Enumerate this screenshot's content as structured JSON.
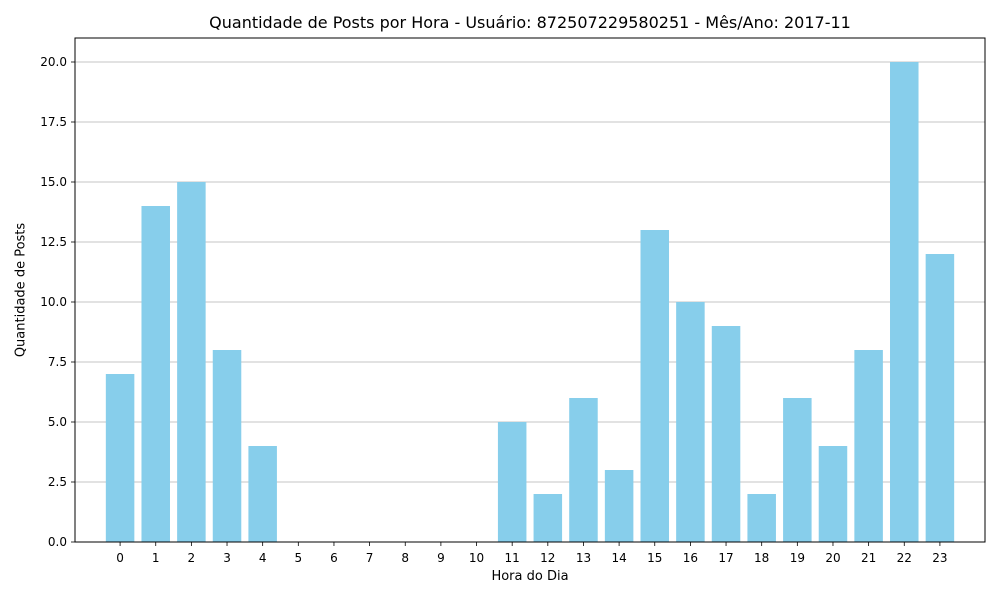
{
  "chart_data": {
    "type": "bar",
    "title": "Quantidade de Posts por Hora - Usuário: 872507229580251 - Mês/Ano: 2017-11",
    "xlabel": "Hora do Dia",
    "ylabel": "Quantidade de Posts",
    "categories": [
      "0",
      "1",
      "2",
      "3",
      "4",
      "5",
      "6",
      "7",
      "8",
      "9",
      "10",
      "11",
      "12",
      "13",
      "14",
      "15",
      "16",
      "17",
      "18",
      "19",
      "20",
      "21",
      "22",
      "23"
    ],
    "values": [
      7,
      14,
      15,
      8,
      4,
      0,
      0,
      0,
      0,
      0,
      0,
      5,
      2,
      6,
      3,
      13,
      10,
      9,
      2,
      6,
      4,
      8,
      20,
      12
    ],
    "ylim": [
      0,
      21
    ],
    "yticks": [
      "0.0",
      "2.5",
      "5.0",
      "7.5",
      "10.0",
      "12.5",
      "15.0",
      "17.5",
      "20.0"
    ],
    "grid": "horizontal",
    "bar_color": "#87ceeb",
    "grid_color": "#b0b0b0"
  }
}
